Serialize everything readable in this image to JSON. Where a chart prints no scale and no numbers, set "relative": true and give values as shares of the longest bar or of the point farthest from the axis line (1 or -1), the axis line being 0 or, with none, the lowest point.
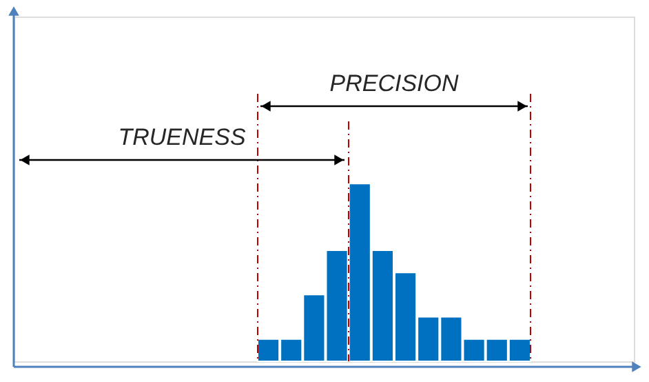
{
  "chart_data": {
    "type": "bar",
    "relative": true,
    "categories": [
      null,
      null,
      null,
      null,
      null,
      null,
      null,
      null,
      null,
      null,
      null,
      null
    ],
    "values": [
      0.125,
      0.125,
      0.375,
      0.625,
      1,
      0.625,
      0.5,
      0.25,
      0.25,
      0.125,
      0.125,
      0.125
    ],
    "color": "#0070c0",
    "annotations": [
      "TRUENESS",
      "PRECISION"
    ]
  }
}
